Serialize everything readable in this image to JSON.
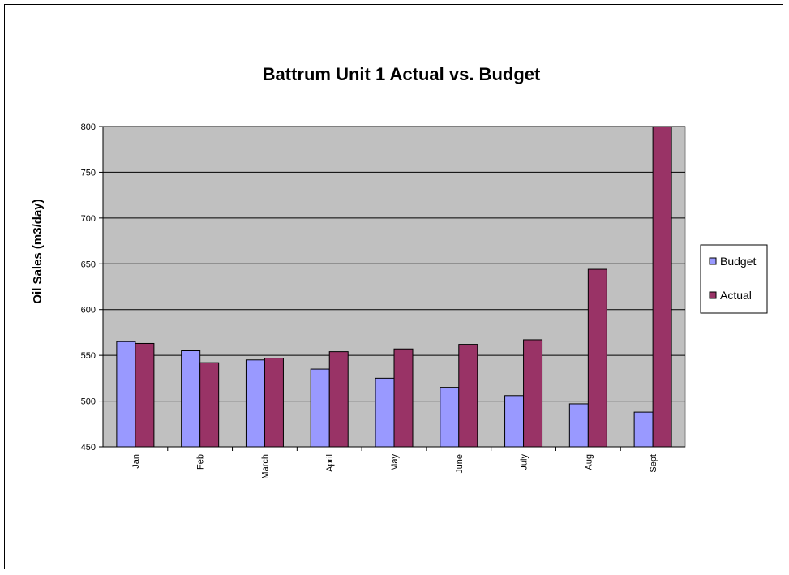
{
  "chart_data": {
    "type": "bar",
    "title": "Battrum Unit 1 Actual vs. Budget",
    "ylabel": "Oil Sales (m3/day)",
    "xlabel": "",
    "categories": [
      "Jan",
      "Feb",
      "March",
      "April",
      "May",
      "June",
      "July",
      "Aug",
      "Sept"
    ],
    "series": [
      {
        "name": "Budget",
        "color": "#9999ff",
        "values": [
          565,
          555,
          545,
          535,
          525,
          515,
          506,
          497,
          488
        ]
      },
      {
        "name": "Actual",
        "color": "#993366",
        "values": [
          563,
          542,
          547,
          554,
          557,
          562,
          567,
          644,
          800
        ]
      }
    ],
    "ylim": [
      450,
      800
    ],
    "yticks": [
      450,
      500,
      550,
      600,
      650,
      700,
      750,
      800
    ],
    "grid": true,
    "plot_background": "#c0c0c0",
    "legend_position": "right"
  }
}
